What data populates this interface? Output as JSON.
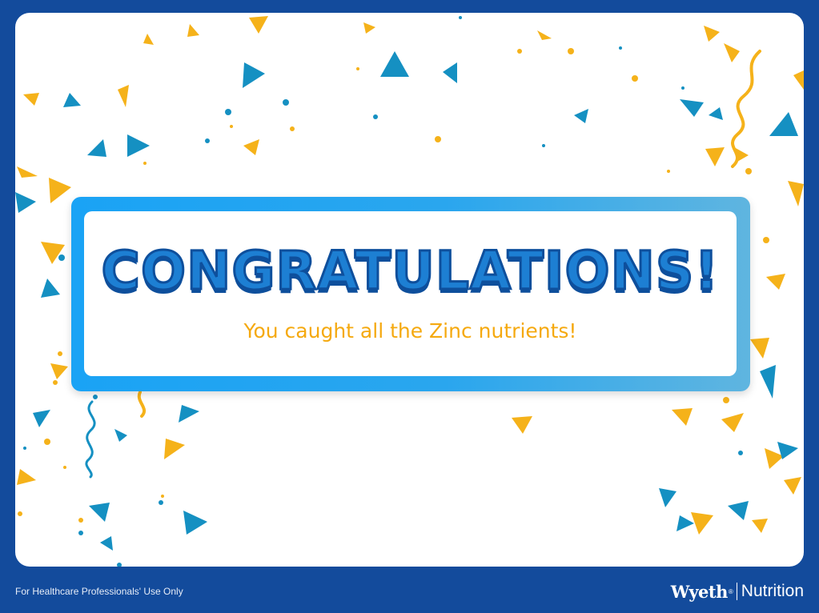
{
  "banner": {
    "title": "CONGRATULATIONS!",
    "subtitle": "You caught all the Zinc nutrients!"
  },
  "footer": {
    "disclaimer": "For Healthcare Professionals' Use Only",
    "brand_name": "Wyeth",
    "brand_mark": "®",
    "brand_sub": "Nutrition"
  },
  "colors": {
    "background": "#134b9c",
    "panel": "#ffffff",
    "title_fill": "#1d7fd3",
    "title_outline": "#0e4f9c",
    "subtitle": "#f5a90f",
    "confetti_yellow": "#f5b21a",
    "confetti_blue": "#1590c2",
    "banner_gradient_start": "#1aa3f5",
    "banner_gradient_end": "#5fb5e0"
  },
  "decoration": {
    "confetti": "confetti-pattern"
  }
}
